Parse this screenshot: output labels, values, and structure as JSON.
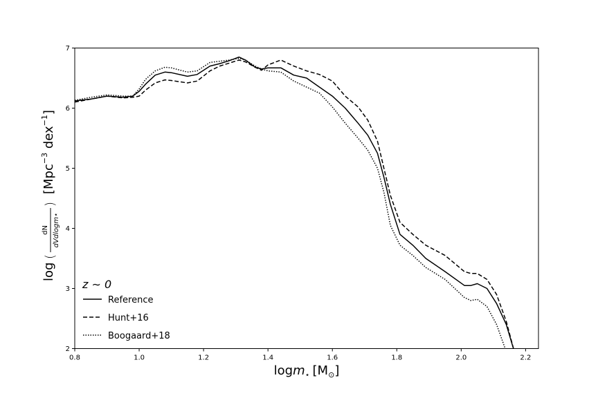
{
  "chart_data": {
    "type": "line",
    "xlabel_prefix": "log",
    "xlabel_var": "m",
    "xlabel_sub": "⋆",
    "xlabel_unit": "[M",
    "xlabel_unit_sub": "⊙",
    "xlabel_unit_end": "]",
    "ylabel_prefix": "log",
    "ylabel_unit": "[Mpc",
    "ylabel_unit_exp1": "−3",
    "ylabel_unit_mid": " dex",
    "ylabel_unit_exp2": "−1",
    "ylabel_unit_end": "]",
    "ylabel_frac_num": "dN",
    "ylabel_frac_den": "dVdlogm⋆",
    "xlim": [
      0.8,
      2.24
    ],
    "ylim": [
      2,
      7
    ],
    "xticks": [
      "0.8",
      "1.0",
      "1.2",
      "1.4",
      "1.6",
      "1.8",
      "2.0",
      "2.2"
    ],
    "yticks": [
      "2",
      "3",
      "4",
      "5",
      "6",
      "7"
    ],
    "legend_title": "z ∼ 0",
    "legend_location": "lower-left",
    "series": [
      {
        "name": "Reference",
        "style": "solid",
        "x": [
          0.8,
          0.85,
          0.9,
          0.95,
          0.98,
          1.0,
          1.02,
          1.05,
          1.08,
          1.1,
          1.15,
          1.18,
          1.22,
          1.25,
          1.28,
          1.31,
          1.33,
          1.36,
          1.38,
          1.4,
          1.44,
          1.48,
          1.52,
          1.56,
          1.6,
          1.64,
          1.68,
          1.71,
          1.74,
          1.76,
          1.78,
          1.81,
          1.85,
          1.89,
          1.95,
          2.01,
          2.03,
          2.05,
          2.08,
          2.11,
          2.14,
          2.165
        ],
        "y": [
          6.12,
          6.15,
          6.2,
          6.18,
          6.2,
          6.28,
          6.4,
          6.55,
          6.6,
          6.59,
          6.53,
          6.56,
          6.7,
          6.74,
          6.79,
          6.85,
          6.8,
          6.68,
          6.65,
          6.67,
          6.67,
          6.55,
          6.5,
          6.35,
          6.2,
          6.0,
          5.75,
          5.55,
          5.25,
          4.85,
          4.4,
          3.9,
          3.72,
          3.5,
          3.28,
          3.05,
          3.05,
          3.08,
          3.0,
          2.75,
          2.4,
          1.95
        ]
      },
      {
        "name": "Hunt+16",
        "style": "dashed",
        "x": [
          0.8,
          0.85,
          0.9,
          0.95,
          0.98,
          1.0,
          1.02,
          1.05,
          1.08,
          1.1,
          1.15,
          1.18,
          1.22,
          1.25,
          1.28,
          1.31,
          1.33,
          1.36,
          1.38,
          1.4,
          1.44,
          1.48,
          1.52,
          1.56,
          1.6,
          1.64,
          1.68,
          1.71,
          1.74,
          1.76,
          1.78,
          1.81,
          1.85,
          1.89,
          1.95,
          2.01,
          2.03,
          2.05,
          2.08,
          2.11,
          2.14,
          2.165
        ],
        "y": [
          6.1,
          6.15,
          6.2,
          6.17,
          6.18,
          6.2,
          6.3,
          6.42,
          6.47,
          6.46,
          6.42,
          6.45,
          6.62,
          6.7,
          6.75,
          6.8,
          6.77,
          6.68,
          6.63,
          6.72,
          6.8,
          6.7,
          6.62,
          6.56,
          6.45,
          6.2,
          6.02,
          5.8,
          5.45,
          5.0,
          4.55,
          4.1,
          3.9,
          3.72,
          3.55,
          3.28,
          3.25,
          3.25,
          3.15,
          2.9,
          2.45,
          1.95
        ]
      },
      {
        "name": "Boogaard+18",
        "style": "dotted",
        "x": [
          0.8,
          0.85,
          0.9,
          0.95,
          0.98,
          1.0,
          1.02,
          1.05,
          1.08,
          1.1,
          1.15,
          1.18,
          1.22,
          1.25,
          1.28,
          1.31,
          1.33,
          1.36,
          1.38,
          1.4,
          1.44,
          1.48,
          1.52,
          1.56,
          1.6,
          1.64,
          1.68,
          1.71,
          1.74,
          1.76,
          1.78,
          1.81,
          1.85,
          1.89,
          1.95,
          2.01,
          2.03,
          2.05,
          2.08,
          2.11,
          2.13,
          2.14
        ],
        "y": [
          6.13,
          6.18,
          6.22,
          6.2,
          6.2,
          6.32,
          6.48,
          6.62,
          6.68,
          6.67,
          6.6,
          6.62,
          6.76,
          6.78,
          6.8,
          6.83,
          6.8,
          6.7,
          6.65,
          6.62,
          6.6,
          6.45,
          6.35,
          6.25,
          6.02,
          5.75,
          5.5,
          5.3,
          5.0,
          4.6,
          4.05,
          3.72,
          3.55,
          3.35,
          3.15,
          2.85,
          2.8,
          2.82,
          2.7,
          2.4,
          2.1,
          1.95
        ]
      }
    ]
  }
}
